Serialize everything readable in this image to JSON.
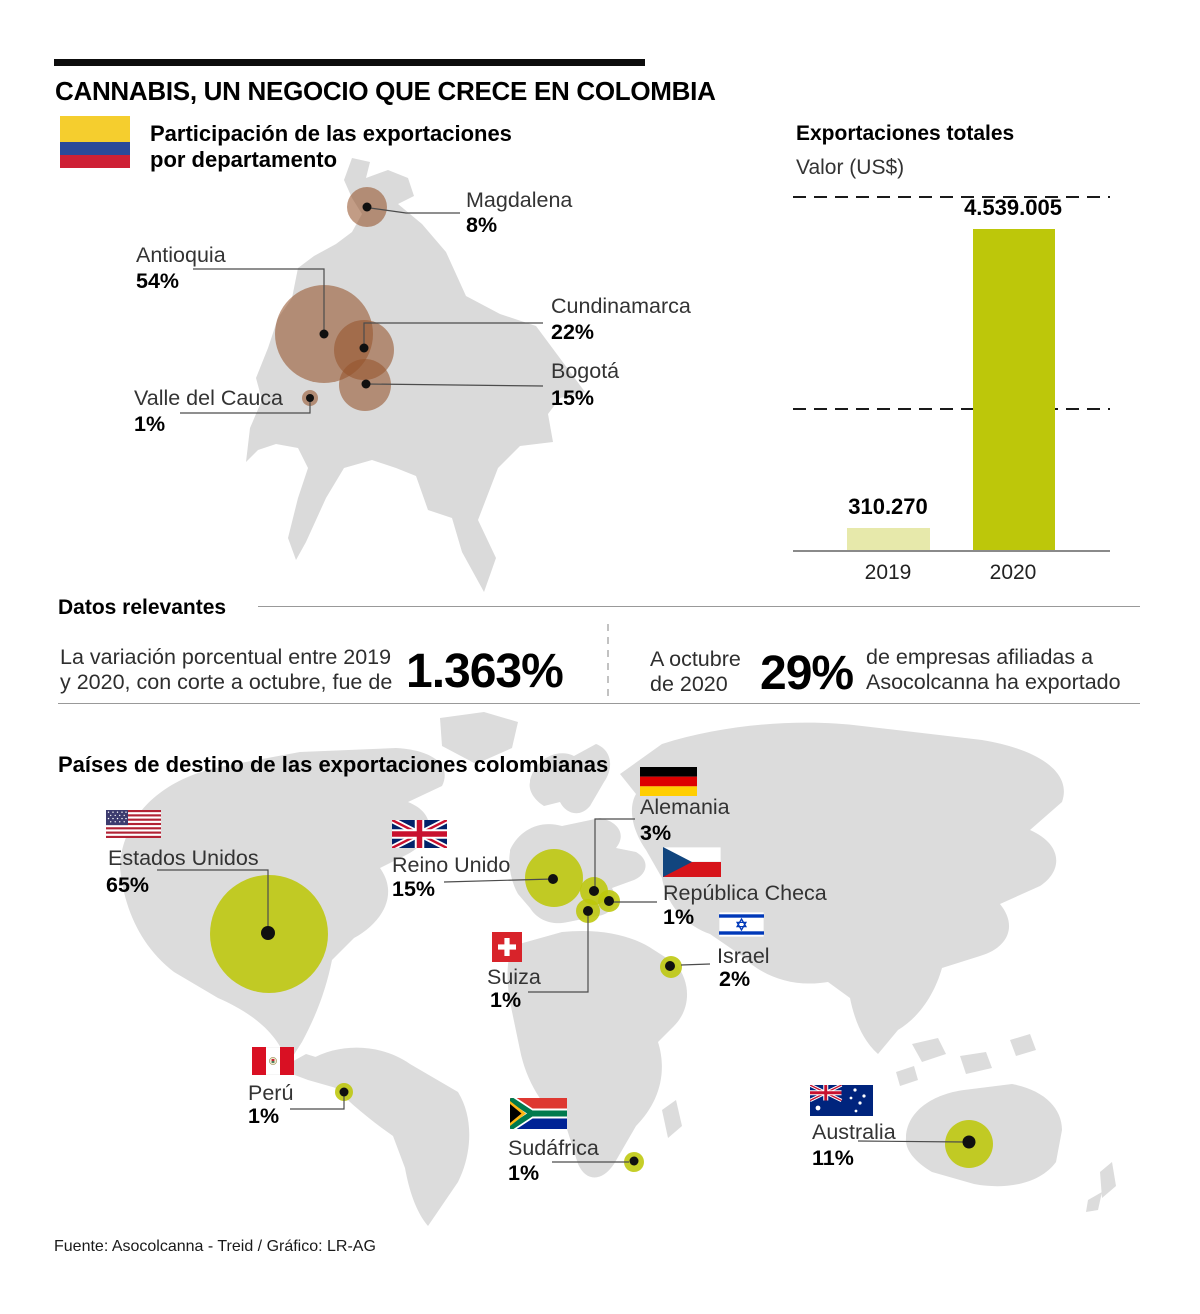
{
  "title": "CANNABIS, UN NEGOCIO QUE CRECE EN COLOMBIA",
  "department_section": {
    "heading": "Participación de las exportaciones por departamento",
    "items": [
      {
        "name": "Magdalena",
        "value": "8%"
      },
      {
        "name": "Antioquia",
        "value": "54%"
      },
      {
        "name": "Cundinamarca",
        "value": "22%"
      },
      {
        "name": "Bogotá",
        "value": "15%"
      },
      {
        "name": "Valle del Cauca",
        "value": "1%"
      }
    ]
  },
  "exports_chart": {
    "heading": "Exportaciones totales",
    "axis_label": "Valor (US$)"
  },
  "chart_data": [
    {
      "type": "bar",
      "title": "Exportaciones totales",
      "ylabel": "Valor (US$)",
      "categories": [
        "2019",
        "2020"
      ],
      "values": [
        310270,
        4539005
      ],
      "value_labels": [
        "310.270",
        "4.539.005"
      ],
      "ylim": [
        0,
        5000000
      ],
      "gridlines": [
        2000000,
        5000000
      ],
      "colors": [
        "#e7e9ab",
        "#bdc70a"
      ],
      "legend_position": "none",
      "grid": "dashed-horizontal"
    },
    {
      "type": "bubble",
      "title": "Participación de las exportaciones por departamento",
      "unit": "percent",
      "points": [
        {
          "label": "Magdalena",
          "value": 8
        },
        {
          "label": "Antioquia",
          "value": 54
        },
        {
          "label": "Cundinamarca",
          "value": 22
        },
        {
          "label": "Bogotá",
          "value": 15
        },
        {
          "label": "Valle del Cauca",
          "value": 1
        }
      ]
    },
    {
      "type": "bubble",
      "title": "Países de destino de las exportaciones colombianas",
      "unit": "percent",
      "points": [
        {
          "label": "Estados Unidos",
          "value": 65
        },
        {
          "label": "Reino Unido",
          "value": 15
        },
        {
          "label": "Alemania",
          "value": 3
        },
        {
          "label": "República Checa",
          "value": 1
        },
        {
          "label": "Suiza",
          "value": 1
        },
        {
          "label": "Israel",
          "value": 2
        },
        {
          "label": "Perú",
          "value": 1
        },
        {
          "label": "Sudáfrica",
          "value": 1
        },
        {
          "label": "Australia",
          "value": 11
        }
      ]
    }
  ],
  "datos": {
    "heading": "Datos relevantes",
    "stat1": {
      "lines": [
        "La variación porcentual entre 2019",
        "y 2020, con corte a octubre, fue de"
      ],
      "value": "1.363%"
    },
    "stat2": {
      "prefix_lines": [
        "A octubre",
        "de 2020"
      ],
      "value": "29%",
      "suffix_lines": [
        "de empresas afiliadas a",
        "Asocolcanna ha exportado"
      ]
    }
  },
  "destinations": {
    "heading": "Países de destino de las exportaciones colombianas",
    "countries": [
      {
        "name": "Estados Unidos",
        "value": "65%",
        "flag": "usa"
      },
      {
        "name": "Reino Unido",
        "value": "15%",
        "flag": "uk"
      },
      {
        "name": "Alemania",
        "value": "3%",
        "flag": "germany"
      },
      {
        "name": "República Checa",
        "value": "1%",
        "flag": "czech-republic"
      },
      {
        "name": "Suiza",
        "value": "1%",
        "flag": "switzerland"
      },
      {
        "name": "Israel",
        "value": "2%",
        "flag": "israel"
      },
      {
        "name": "Perú",
        "value": "1%",
        "flag": "peru"
      },
      {
        "name": "Sudáfrica",
        "value": "1%",
        "flag": "south-africa"
      },
      {
        "name": "Australia",
        "value": "11%",
        "flag": "australia"
      }
    ]
  },
  "footer": {
    "source": "Fuente: Asocolcanna - Treid / Gráfico: LR-AG"
  },
  "colors": {
    "accent_green": "#bdc70a",
    "accent_green_light": "#e7e9ab",
    "bubble_brown": "#96552d",
    "map_gray": "#dadada",
    "flag_colombia": [
      "#f5ce2e",
      "#2b4a99",
      "#ce2035"
    ]
  }
}
